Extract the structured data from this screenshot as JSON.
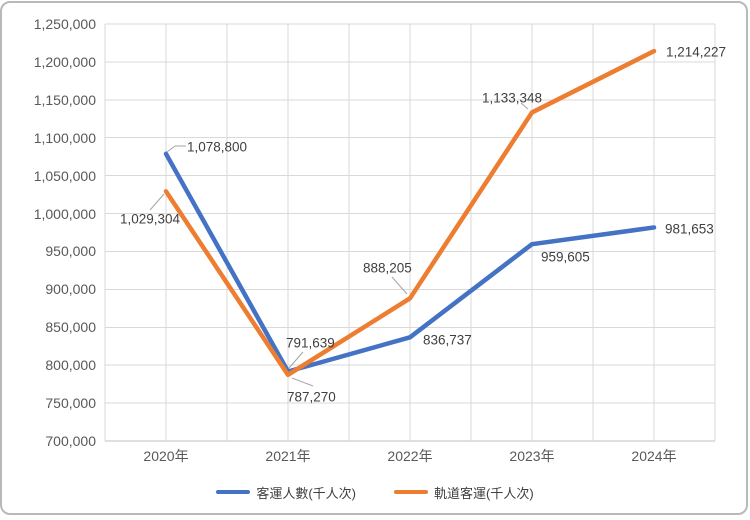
{
  "chart_data": {
    "type": "line",
    "title": "",
    "categories": [
      "2020年",
      "2021年",
      "2022年",
      "2023年",
      "2024年"
    ],
    "series": [
      {
        "name": "客運人數(千人次)",
        "color": "#4472C4",
        "values": [
          1078800,
          791639,
          836737,
          959605,
          981653
        ],
        "data_labels": [
          "1,078,800",
          "791,639",
          "836,737",
          "959,605",
          "981,653"
        ]
      },
      {
        "name": "軌道客運(千人次)",
        "color": "#ED7D31",
        "values": [
          1029304,
          787270,
          888205,
          1133348,
          1214227
        ],
        "data_labels": [
          "1,029,304",
          "787,270",
          "888,205",
          "1,133,348",
          "1,214,227"
        ]
      }
    ],
    "y_axis": {
      "min": 700000,
      "max": 1250000,
      "step": 50000,
      "tick_labels": [
        "1,250,000",
        "1,200,000",
        "1,150,000",
        "1,100,000",
        "1,050,000",
        "1,000,000",
        "950,000",
        "900,000",
        "850,000",
        "800,000",
        "750,000",
        "700,000"
      ]
    },
    "grid": {
      "horizontal": true,
      "vertical": true
    },
    "legend_position": "bottom",
    "colors": {
      "gridline": "#D9D9D9",
      "axis_line": "#BFBFBF",
      "axis_text": "#595959",
      "data_label_text": "#404040",
      "leader_line": "#A6A6A6",
      "frame_border": "#B9B9B9"
    }
  }
}
